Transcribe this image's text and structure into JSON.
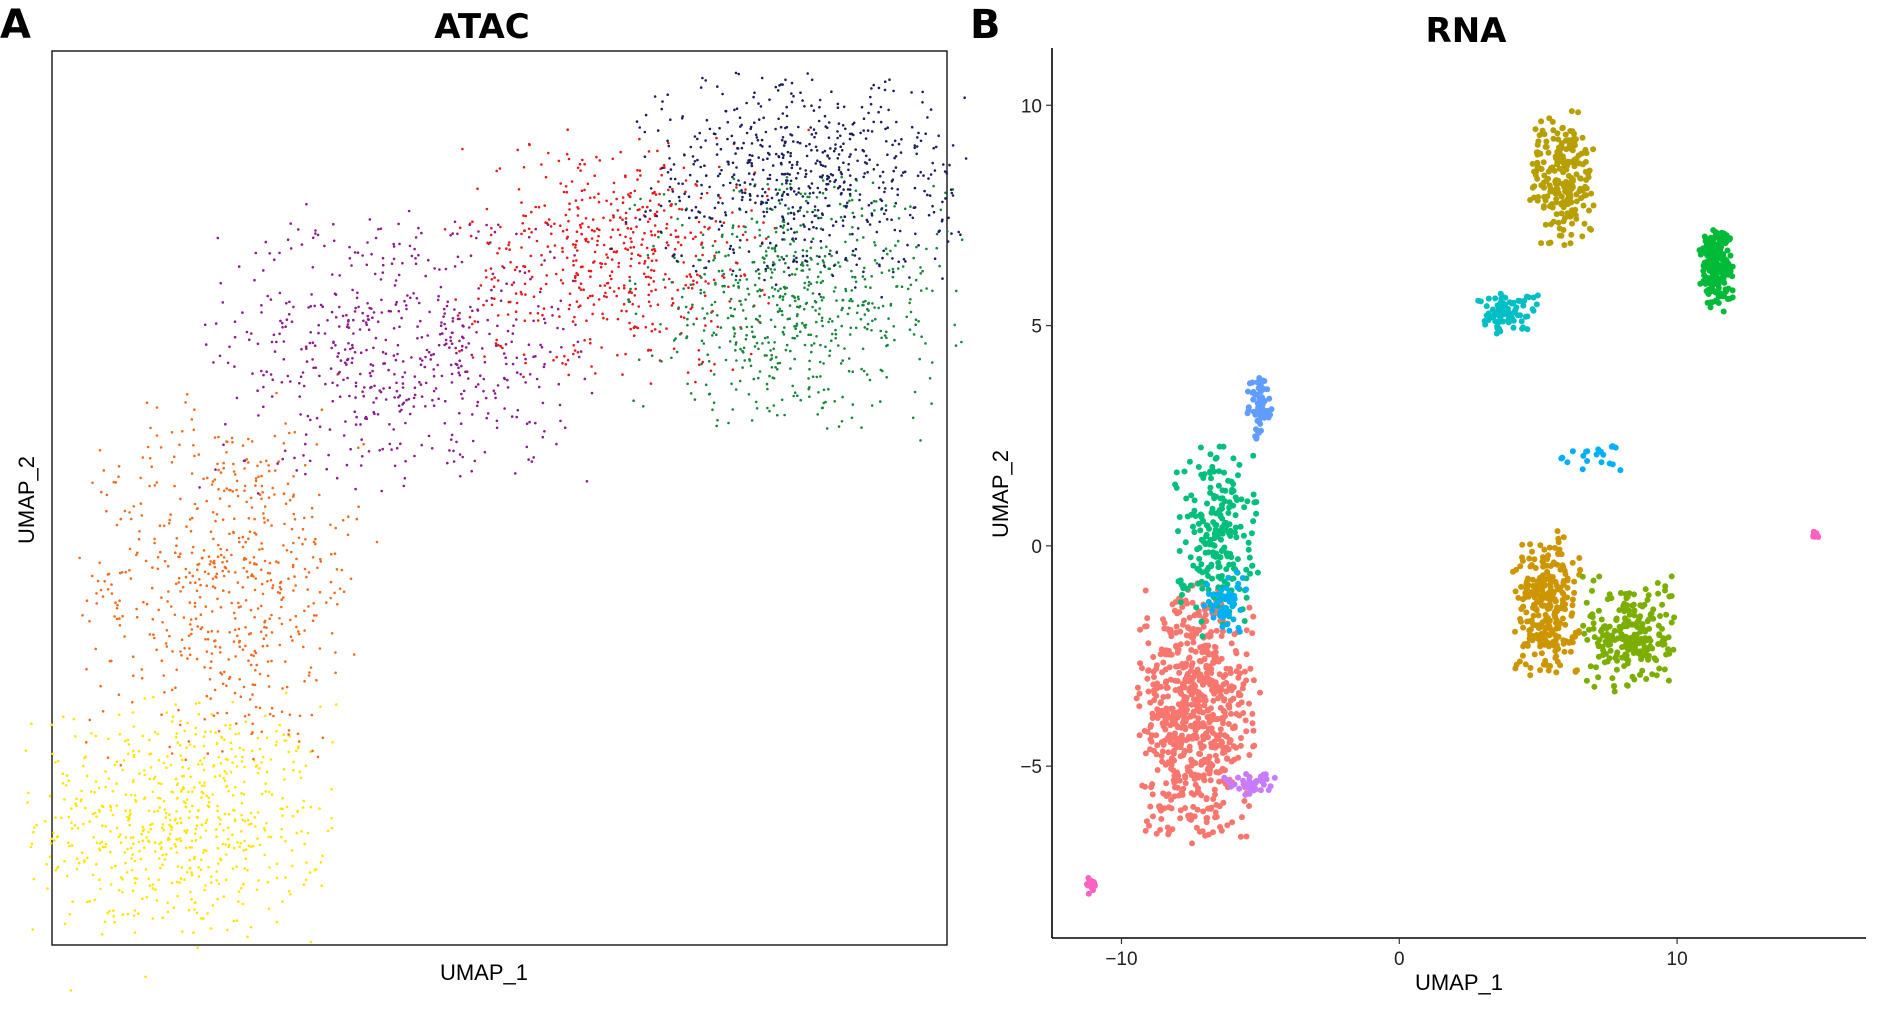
{
  "chart_data": [
    {
      "type": "scatter",
      "panel_label": "A",
      "title": "ATAC",
      "xlabel": "UMAP_1",
      "ylabel": "UMAP_2",
      "xlim": [
        0,
        100
      ],
      "ylim": [
        0,
        100
      ],
      "ticks_shown": false,
      "grid": false,
      "frame": "box",
      "clusters": [
        {
          "name": "yellow",
          "color": "#FFE500",
          "center": [
            14.5,
            14
          ],
          "sd": [
            8,
            6.5
          ],
          "n": 650
        },
        {
          "name": "orange",
          "color": "#F26B1D",
          "center": [
            19.5,
            41
          ],
          "sd": [
            7.5,
            9.5
          ],
          "n": 600
        },
        {
          "name": "purple",
          "color": "#8B1C8B",
          "center": [
            39,
            67
          ],
          "sd": [
            10,
            7.5
          ],
          "n": 600
        },
        {
          "name": "red",
          "color": "#E3191C",
          "center": [
            63,
            77
          ],
          "sd": [
            8.5,
            6.5
          ],
          "n": 550
        },
        {
          "name": "green",
          "color": "#15863A",
          "center": [
            83,
            72
          ],
          "sd": [
            8.5,
            6.5
          ],
          "n": 650
        },
        {
          "name": "navy",
          "color": "#1C1F5E",
          "center": [
            84,
            86
          ],
          "sd": [
            8.5,
            5.5
          ],
          "n": 650
        }
      ]
    },
    {
      "type": "scatter",
      "panel_label": "B",
      "title": "RNA",
      "xlabel": "UMAP_1",
      "ylabel": "UMAP_2",
      "xlim": [
        -12.5,
        16.8
      ],
      "ylim": [
        -8.9,
        11.3
      ],
      "xticks": [
        -10,
        0,
        10
      ],
      "yticks": [
        -5,
        0,
        5,
        10
      ],
      "grid": false,
      "frame": "left-bottom",
      "clusters": [
        {
          "name": "0",
          "color": "#F8766D",
          "center": [
            -7.3,
            -3.8
          ],
          "sd": [
            1.0,
            1.35
          ],
          "n": 700
        },
        {
          "name": "1",
          "color": "#CD9600",
          "center": [
            5.3,
            -1.4
          ],
          "sd": [
            0.55,
            0.75
          ],
          "n": 280
        },
        {
          "name": "2",
          "color": "#7CAE00",
          "center": [
            8.3,
            -2.0
          ],
          "sd": [
            0.75,
            0.6
          ],
          "n": 230
        },
        {
          "name": "3",
          "color": "#B79F00",
          "center": [
            5.9,
            8.3
          ],
          "sd": [
            0.55,
            0.75
          ],
          "n": 230
        },
        {
          "name": "4",
          "color": "#00BF7D",
          "center": [
            -6.6,
            0.3
          ],
          "sd": [
            0.7,
            0.95
          ],
          "n": 230
        },
        {
          "name": "5",
          "color": "#00BA38",
          "center": [
            11.4,
            6.4
          ],
          "sd": [
            0.28,
            0.45
          ],
          "n": 200
        },
        {
          "name": "6",
          "color": "#00BFC4",
          "center": [
            3.8,
            5.3
          ],
          "sd": [
            0.55,
            0.22
          ],
          "n": 90
        },
        {
          "name": "7",
          "color": "#00B0F6",
          "center": [
            -6.2,
            -1.3
          ],
          "sd": [
            0.4,
            0.35
          ],
          "n": 50
        },
        {
          "name": "8",
          "color": "#619CFF",
          "center": [
            -5.0,
            3.1
          ],
          "sd": [
            0.22,
            0.35
          ],
          "n": 60
        },
        {
          "name": "9",
          "color": "#C77CFF",
          "center": [
            -5.4,
            -5.4
          ],
          "sd": [
            0.45,
            0.12
          ],
          "n": 40
        },
        {
          "name": "10",
          "color": "#FF61C3",
          "center": [
            -11.1,
            -7.7
          ],
          "sd": [
            0.08,
            0.1
          ],
          "n": 25
        },
        {
          "name": "10b",
          "color": "#FF61C3",
          "center": [
            15.0,
            0.25
          ],
          "sd": [
            0.06,
            0.05
          ],
          "n": 12
        },
        {
          "name": "7b",
          "color": "#00B0F6",
          "center": [
            6.8,
            2.0
          ],
          "sd": [
            0.6,
            0.15
          ],
          "n": 20
        }
      ]
    }
  ]
}
